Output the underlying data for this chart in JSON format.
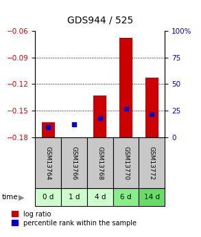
{
  "title": "GDS944 / 525",
  "samples": [
    "GSM13764",
    "GSM13766",
    "GSM13768",
    "GSM13770",
    "GSM13772"
  ],
  "time_labels": [
    "0 d",
    "1 d",
    "4 d",
    "6 d",
    "14 d"
  ],
  "log_ratio": [
    -0.163,
    -0.181,
    -0.133,
    -0.068,
    -0.113
  ],
  "percentile_rank": [
    10,
    12,
    18,
    27,
    22
  ],
  "ylim_left": [
    -0.18,
    -0.06
  ],
  "ylim_right": [
    0,
    100
  ],
  "yticks_left": [
    -0.18,
    -0.15,
    -0.12,
    -0.09,
    -0.06
  ],
  "yticks_right": [
    0,
    25,
    50,
    75,
    100
  ],
  "bar_color": "#cc0000",
  "percentile_color": "#0000cc",
  "bar_width": 0.5,
  "sample_bg_color": "#c8c8c8",
  "time_bg_colors": [
    "#ccffcc",
    "#ccffcc",
    "#ccffcc",
    "#88ee88",
    "#66dd66"
  ],
  "legend_log_ratio": "log ratio",
  "legend_percentile": "percentile rank within the sample",
  "left_tick_color": "#cc0000",
  "right_tick_color": "#0000cc",
  "grid_yticks": [
    -0.15,
    -0.12,
    -0.09
  ]
}
